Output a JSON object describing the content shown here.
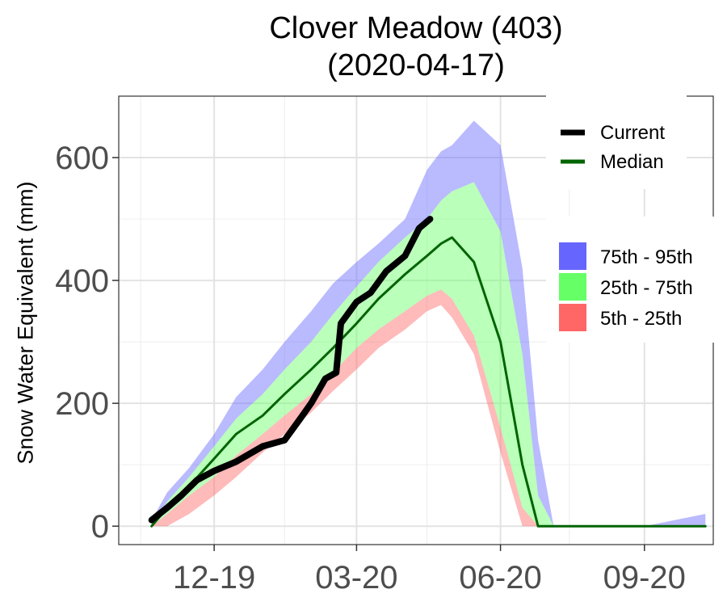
{
  "chart_data": {
    "type": "area",
    "title": "Clover Meadow (403)",
    "subtitle": "(2020-04-17)",
    "xlabel": "",
    "ylabel": "Snow Water Equivalent (mm)",
    "x_ticks": [
      "12-19",
      "03-20",
      "06-20",
      "09-20"
    ],
    "y_ticks": [
      0,
      200,
      400,
      600
    ],
    "xlim": [
      "2019-10-01",
      "2020-10-15"
    ],
    "ylim": [
      -30,
      700
    ],
    "grid": true,
    "legend_position": "right",
    "legend_lines": [
      {
        "name": "Current",
        "color": "#000000"
      },
      {
        "name": "Median",
        "color": "#006400"
      }
    ],
    "legend_bands": [
      {
        "name": "75th - 95th",
        "color": "#6666ff"
      },
      {
        "name": "25th - 75th",
        "color": "#66ff66"
      },
      {
        "name": "5th - 25th",
        "color": "#ff6666"
      }
    ],
    "x": [
      "2019-10-22",
      "2019-11-01",
      "2019-11-15",
      "2019-12-01",
      "2019-12-15",
      "2020-01-01",
      "2020-01-15",
      "2020-02-01",
      "2020-02-15",
      "2020-03-01",
      "2020-03-15",
      "2020-04-01",
      "2020-04-15",
      "2020-04-24",
      "2020-05-01",
      "2020-05-15",
      "2020-06-01",
      "2020-06-15",
      "2020-06-25",
      "2020-07-05",
      "2020-07-20",
      "2020-08-01",
      "2020-09-01",
      "2020-10-10"
    ],
    "series": [
      {
        "name": "5th",
        "values": [
          0,
          0,
          20,
          50,
          80,
          120,
          150,
          185,
          220,
          255,
          290,
          320,
          350,
          360,
          340,
          280,
          120,
          0,
          0,
          0,
          0,
          0,
          0,
          0
        ]
      },
      {
        "name": "25th",
        "values": [
          0,
          20,
          50,
          80,
          115,
          150,
          180,
          215,
          250,
          290,
          320,
          350,
          375,
          385,
          370,
          310,
          160,
          30,
          0,
          0,
          0,
          0,
          0,
          0
        ]
      },
      {
        "name": "Median",
        "values": [
          0,
          30,
          65,
          110,
          150,
          180,
          215,
          255,
          290,
          330,
          370,
          410,
          440,
          460,
          470,
          430,
          300,
          100,
          0,
          0,
          0,
          0,
          0,
          0
        ]
      },
      {
        "name": "75th",
        "values": [
          0,
          40,
          80,
          130,
          175,
          215,
          255,
          300,
          345,
          390,
          430,
          470,
          500,
          530,
          545,
          560,
          480,
          280,
          50,
          0,
          0,
          0,
          0,
          0
        ]
      },
      {
        "name": "95th",
        "values": [
          10,
          55,
          95,
          150,
          210,
          255,
          300,
          350,
          395,
          430,
          460,
          500,
          580,
          610,
          620,
          660,
          620,
          420,
          140,
          0,
          0,
          0,
          0,
          20
        ]
      }
    ],
    "current": {
      "name": "Current",
      "x": [
        "2019-10-22",
        "2019-11-01",
        "2019-11-10",
        "2019-11-20",
        "2019-12-01",
        "2019-12-15",
        "2020-01-01",
        "2020-01-15",
        "2020-01-25",
        "2020-02-01",
        "2020-02-10",
        "2020-02-17",
        "2020-02-20",
        "2020-03-01",
        "2020-03-10",
        "2020-03-20",
        "2020-04-01",
        "2020-04-10",
        "2020-04-17"
      ],
      "values": [
        10,
        30,
        50,
        75,
        90,
        105,
        130,
        140,
        175,
        200,
        240,
        250,
        330,
        365,
        380,
        415,
        440,
        485,
        500
      ]
    }
  }
}
